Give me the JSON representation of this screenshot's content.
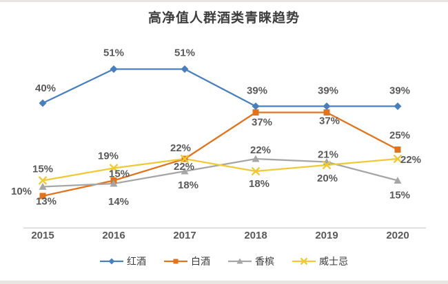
{
  "page": {
    "background": "#ffffff",
    "edge_strip_color": "#e9e6e2"
  },
  "chart_data": {
    "type": "line",
    "title": "高净值人群酒类青睐趋势",
    "title_color": "#3d3d3d",
    "x_labels": [
      "2015",
      "2016",
      "2017",
      "2018",
      "2019",
      "2020"
    ],
    "series": [
      {
        "name": "红酒",
        "color": "#4a7fbe",
        "marker": "diamond",
        "values": [
          40,
          51,
          51,
          39,
          39,
          39
        ],
        "point_labels": [
          "40%",
          "51%",
          "51%",
          "39%",
          "39%",
          "39%"
        ]
      },
      {
        "name": "白酒",
        "color": "#e2731d",
        "marker": "square",
        "values": [
          10,
          15,
          22,
          37,
          37,
          25
        ],
        "point_labels": [
          "10%",
          "15%",
          "22%",
          "37%",
          "37%",
          "25%"
        ]
      },
      {
        "name": "香槟",
        "color": "#a6a6a6",
        "marker": "triangle",
        "values": [
          13,
          14,
          18,
          22,
          21,
          15
        ],
        "point_labels": [
          "13%",
          "14%",
          "18%",
          "22%",
          "21%",
          "15%"
        ]
      },
      {
        "name": "威士忌",
        "color": "#efc937",
        "marker": "x",
        "values": [
          15,
          19,
          22,
          18,
          20,
          22
        ],
        "point_labels": [
          "15%",
          "19%",
          "22%",
          "18%",
          "20%",
          "22%"
        ]
      }
    ],
    "ylim": [
      0,
      60
    ],
    "grid": false,
    "legend_position": "bottom",
    "data_label_color": "#595959",
    "axis_label_color": "#595959",
    "axis_line_color": "#d6d6d6"
  }
}
